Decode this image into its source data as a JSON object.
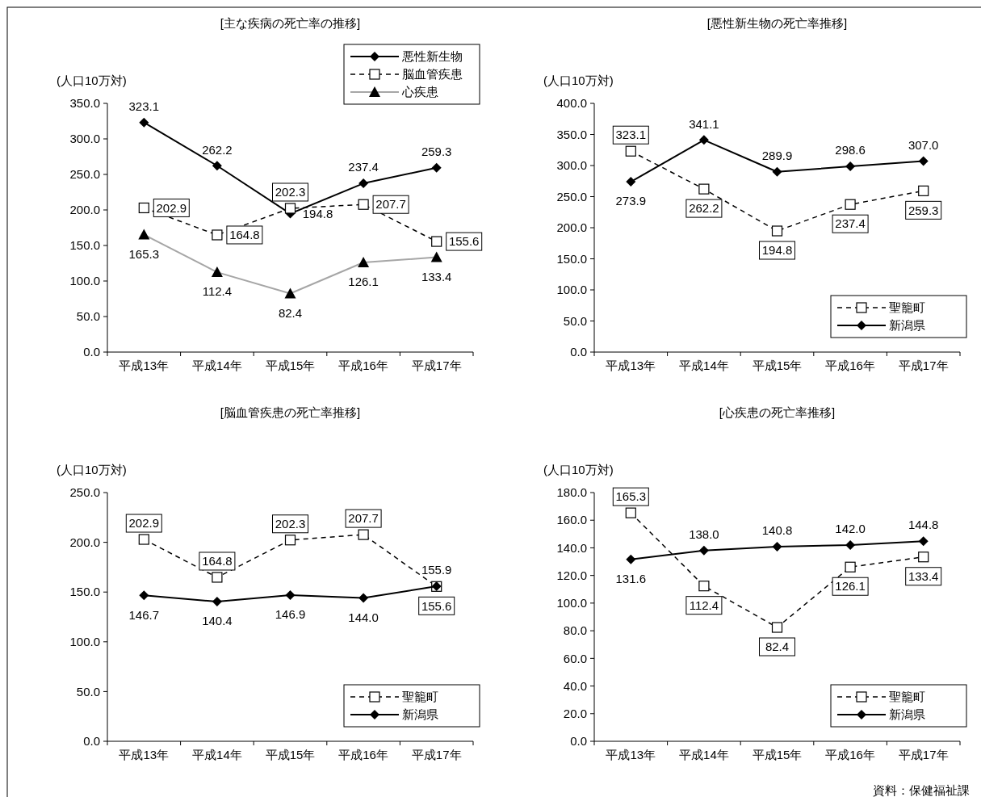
{
  "chart_data": [
    {
      "type": "line",
      "title": "[主な疾病の死亡率の推移]",
      "ylabel": "(人口10万対)",
      "categories": [
        "平成13年",
        "平成14年",
        "平成15年",
        "平成16年",
        "平成17年"
      ],
      "ylim": [
        0,
        350
      ],
      "yticks": [
        {
          "value": 0,
          "label": "0.0"
        },
        {
          "value": 50,
          "label": "50.0"
        },
        {
          "value": 100,
          "label": "100.0"
        },
        {
          "value": 150,
          "label": "150.0"
        },
        {
          "value": 200,
          "label": "200.0"
        },
        {
          "value": 250,
          "label": "250.0"
        },
        {
          "value": 300,
          "label": "300.0"
        },
        {
          "value": 350,
          "label": "350.0"
        }
      ],
      "legend": "top right",
      "series": [
        {
          "name": "悪性新生物",
          "color": "#000000",
          "marker": "diamond",
          "line_style": "solid",
          "values": [
            323.1,
            262.2,
            194.8,
            237.4,
            259.3
          ],
          "value_labels": [
            "323.1",
            "262.2",
            "194.8",
            "237.4",
            "259.3"
          ]
        },
        {
          "name": "脳血管疾患",
          "color": "#000000",
          "marker": "square",
          "line_style": "dashed",
          "values": [
            202.9,
            164.8,
            202.3,
            207.7,
            155.6
          ],
          "value_labels": [
            "202.9",
            "164.8",
            "202.3",
            "207.7",
            "155.6"
          ]
        },
        {
          "name": "心疾患",
          "color": "#a6a6a6",
          "marker": "triangle",
          "line_style": "solid",
          "values": [
            165.3,
            112.4,
            82.4,
            126.1,
            133.4
          ],
          "value_labels": [
            "165.3",
            "112.4",
            "82.4",
            "126.1",
            "133.4"
          ]
        }
      ]
    },
    {
      "type": "line",
      "title": "[悪性新生物の死亡率推移]",
      "ylabel": "(人口10万対)",
      "categories": [
        "平成13年",
        "平成14年",
        "平成15年",
        "平成16年",
        "平成17年"
      ],
      "ylim": [
        0,
        400
      ],
      "yticks": [
        {
          "value": 0,
          "label": "0.0"
        },
        {
          "value": 50,
          "label": "50.0"
        },
        {
          "value": 100,
          "label": "100.0"
        },
        {
          "value": 150,
          "label": "150.0"
        },
        {
          "value": 200,
          "label": "200.0"
        },
        {
          "value": 250,
          "label": "250.0"
        },
        {
          "value": 300,
          "label": "300.0"
        },
        {
          "value": 350,
          "label": "350.0"
        },
        {
          "value": 400,
          "label": "400.0"
        }
      ],
      "legend": "bottom right",
      "series": [
        {
          "name": "聖籠町",
          "color": "#000000",
          "marker": "square",
          "line_style": "dashed",
          "values": [
            323.1,
            262.2,
            194.8,
            237.4,
            259.3
          ],
          "value_labels": [
            "323.1",
            "262.2",
            "194.8",
            "237.4",
            "259.3"
          ]
        },
        {
          "name": "新潟県",
          "color": "#000000",
          "marker": "diamond",
          "line_style": "solid",
          "values": [
            273.9,
            341.1,
            289.9,
            298.6,
            307.0
          ],
          "value_labels": [
            "273.9",
            "341.1",
            "289.9",
            "298.6",
            "307.0"
          ]
        }
      ]
    },
    {
      "type": "line",
      "title": "[脳血管疾患の死亡率推移]",
      "ylabel": "(人口10万対)",
      "categories": [
        "平成13年",
        "平成14年",
        "平成15年",
        "平成16年",
        "平成17年"
      ],
      "ylim": [
        0,
        250
      ],
      "yticks": [
        {
          "value": 0,
          "label": "0.0"
        },
        {
          "value": 50,
          "label": "50.0"
        },
        {
          "value": 100,
          "label": "100.0"
        },
        {
          "value": 150,
          "label": "150.0"
        },
        {
          "value": 200,
          "label": "200.0"
        },
        {
          "value": 250,
          "label": "250.0"
        }
      ],
      "legend": "bottom right",
      "series": [
        {
          "name": "聖籠町",
          "color": "#000000",
          "marker": "square",
          "line_style": "dashed",
          "values": [
            202.9,
            164.8,
            202.3,
            207.7,
            155.6
          ],
          "value_labels": [
            "202.9",
            "164.8",
            "202.3",
            "207.7",
            "155.6"
          ]
        },
        {
          "name": "新潟県",
          "color": "#000000",
          "marker": "diamond",
          "line_style": "solid",
          "values": [
            146.7,
            140.4,
            146.9,
            144.0,
            155.9
          ],
          "value_labels": [
            "146.7",
            "140.4",
            "146.9",
            "144.0",
            "155.9"
          ]
        }
      ]
    },
    {
      "type": "line",
      "title": "[心疾患の死亡率推移]",
      "ylabel": "(人口10万対)",
      "categories": [
        "平成13年",
        "平成14年",
        "平成15年",
        "平成16年",
        "平成17年"
      ],
      "ylim": [
        0,
        180
      ],
      "yticks": [
        {
          "value": 0,
          "label": "0.0"
        },
        {
          "value": 20,
          "label": "20.0"
        },
        {
          "value": 40,
          "label": "40.0"
        },
        {
          "value": 60,
          "label": "60.0"
        },
        {
          "value": 80,
          "label": "80.0"
        },
        {
          "value": 100,
          "label": "100.0"
        },
        {
          "value": 120,
          "label": "120.0"
        },
        {
          "value": 140,
          "label": "140.0"
        },
        {
          "value": 160,
          "label": "160.0"
        },
        {
          "value": 180,
          "label": "180.0"
        }
      ],
      "legend": "bottom right",
      "annotations": [
        "資料：保健福祉課"
      ],
      "series": [
        {
          "name": "聖籠町",
          "color": "#000000",
          "marker": "square",
          "line_style": "dashed",
          "values": [
            165.3,
            112.4,
            82.4,
            126.1,
            133.4
          ],
          "value_labels": [
            "165.3",
            "112.4",
            "82.4",
            "126.1",
            "133.4"
          ]
        },
        {
          "name": "新潟県",
          "color": "#000000",
          "marker": "diamond",
          "line_style": "solid",
          "values": [
            131.6,
            138.0,
            140.8,
            142.0,
            144.8
          ],
          "value_labels": [
            "131.6",
            "138.0",
            "140.8",
            "142.0",
            "144.8"
          ]
        }
      ]
    }
  ]
}
